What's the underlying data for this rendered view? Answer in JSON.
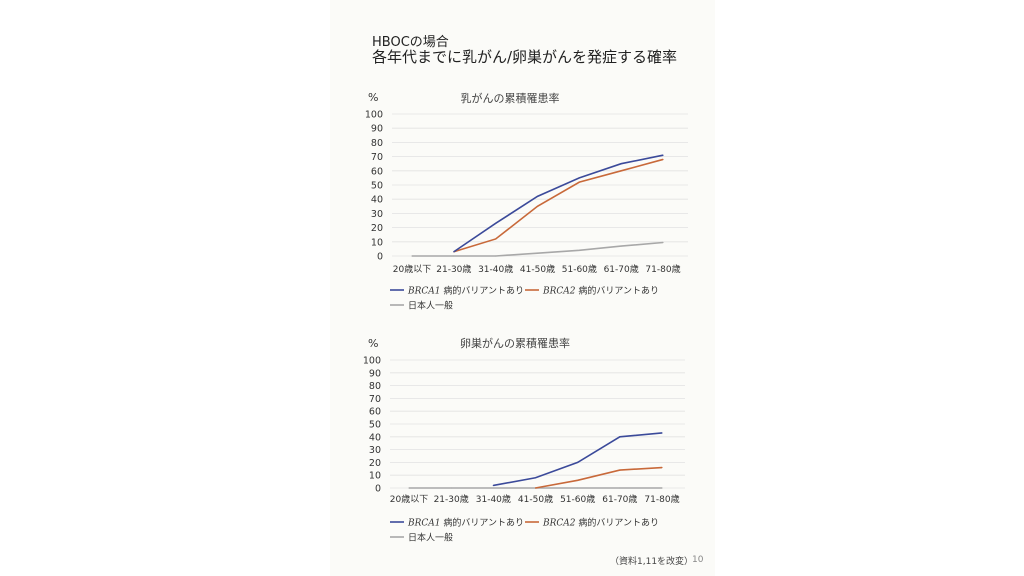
{
  "header": {
    "line1": "HBOCの場合",
    "line2": "各年代までに乳がん/卵巣がんを発症する確率"
  },
  "colors": {
    "brca1": "#3b4a9a",
    "brca2": "#c8693a",
    "general": "#a8a8a8",
    "grid": "#e2e2e2"
  },
  "chart_data": [
    {
      "type": "line",
      "title": "乳がんの累積罹患率",
      "ylabel": "%",
      "ylim": [
        0,
        100
      ],
      "yticks": [
        "0",
        "10",
        "20",
        "30",
        "40",
        "50",
        "60",
        "70",
        "80",
        "90",
        "100"
      ],
      "categories": [
        "20歳以下",
        "21-30歳",
        "31-40歳",
        "41-50歳",
        "51-60歳",
        "61-70歳",
        "71-80歳"
      ],
      "series": [
        {
          "name_italic": "BRCA1",
          "name": "病的バリアントあり",
          "color_key": "brca1",
          "values": [
            null,
            3,
            23,
            42,
            55,
            65,
            71
          ]
        },
        {
          "name_italic": "BRCA2",
          "name": "病的バリアントあり",
          "color_key": "brca2",
          "values": [
            null,
            3,
            12,
            35,
            52,
            60,
            68
          ]
        },
        {
          "name_italic": "",
          "name": "日本人一般",
          "color_key": "general",
          "values": [
            0,
            0,
            0,
            2,
            4,
            7,
            9.5
          ]
        }
      ],
      "legend": "bottom"
    },
    {
      "type": "line",
      "title": "卵巣がんの累積罹患率",
      "ylabel": "%",
      "ylim": [
        0,
        100
      ],
      "yticks": [
        "0",
        "10",
        "20",
        "30",
        "40",
        "50",
        "60",
        "70",
        "80",
        "90",
        "100"
      ],
      "categories": [
        "20歳以下",
        "21-30歳",
        "31-40歳",
        "41-50歳",
        "51-60歳",
        "61-70歳",
        "71-80歳"
      ],
      "series": [
        {
          "name_italic": "BRCA1",
          "name": "病的バリアントあり",
          "color_key": "brca1",
          "values": [
            null,
            null,
            2,
            8,
            20,
            40,
            43
          ]
        },
        {
          "name_italic": "BRCA2",
          "name": "病的バリアントあり",
          "color_key": "brca2",
          "values": [
            null,
            null,
            null,
            0,
            6,
            14,
            16
          ]
        },
        {
          "name_italic": "",
          "name": "日本人一般",
          "color_key": "general",
          "values": [
            0,
            0,
            0,
            0,
            0,
            0,
            0
          ]
        }
      ],
      "legend": "bottom"
    }
  ],
  "footnote": "（資料1,11を改変）",
  "page_number": "10"
}
